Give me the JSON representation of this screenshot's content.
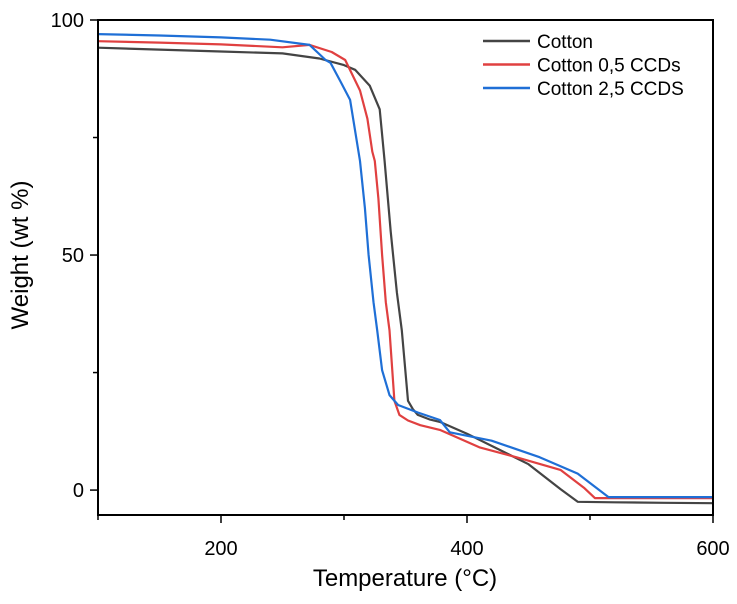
{
  "chart_data": {
    "type": "line",
    "title": "",
    "xlabel": "Temperature (°C)",
    "ylabel": "Weight (wt %)",
    "xlim": [
      100,
      600
    ],
    "ylim": [
      -5.3,
      100
    ],
    "xticks": [
      200,
      400,
      600
    ],
    "xtick_labels": [
      "200",
      "400",
      "600"
    ],
    "x_minor_ticks": [
      100,
      300,
      500
    ],
    "yticks": [
      0,
      50,
      100
    ],
    "ytick_labels": [
      "0",
      "50",
      "100"
    ],
    "y_minor_ticks": [
      25,
      75
    ],
    "grid": false,
    "legend_position": "top-right",
    "series": [
      {
        "name": "Cotton",
        "color": "#444444",
        "x": [
          100,
          150,
          200,
          250,
          280,
          300,
          309,
          321,
          329,
          333,
          338,
          343,
          347,
          352,
          356,
          360,
          370,
          378,
          400,
          427,
          450,
          476,
          490,
          520,
          560,
          600
        ],
        "y": [
          94.1,
          93.7,
          93.3,
          92.9,
          91.8,
          90.4,
          89.4,
          86.0,
          81.0,
          70.0,
          55.0,
          42.0,
          34.0,
          19.0,
          17.2,
          16.0,
          15.0,
          14.5,
          12.0,
          8.5,
          5.5,
          0.2,
          -2.5,
          -2.6,
          -2.7,
          -2.8
        ]
      },
      {
        "name": "Cotton 0,5 CCDs",
        "color": "#e04040",
        "x": [
          100,
          150,
          200,
          250,
          272,
          290,
          301,
          313,
          319,
          323,
          325,
          328,
          331,
          334,
          337,
          341,
          345,
          352,
          362,
          378,
          410,
          440,
          476,
          495,
          504,
          540,
          600
        ],
        "y": [
          95.5,
          95.2,
          94.8,
          94.2,
          94.7,
          93.2,
          91.5,
          85.0,
          79.0,
          72.0,
          70.0,
          62.0,
          50.0,
          40.0,
          34.0,
          19.0,
          16.0,
          14.8,
          13.8,
          12.8,
          9.1,
          7.0,
          4.3,
          0.5,
          -1.7,
          -1.7,
          -1.7
        ]
      },
      {
        "name": "Cotton 2,5 CCDS",
        "color": "#1f6fd6",
        "x": [
          100,
          150,
          200,
          240,
          272,
          285,
          289,
          297,
          305,
          313,
          317,
          320,
          324,
          327,
          331,
          337,
          344,
          360,
          378,
          386,
          420,
          459,
          490,
          515,
          560,
          600
        ],
        "y": [
          97.0,
          96.7,
          96.3,
          95.8,
          94.7,
          91.5,
          90.9,
          87.0,
          83.0,
          70.0,
          60.0,
          50.0,
          40.0,
          34.0,
          25.5,
          20.2,
          18.1,
          16.5,
          14.9,
          12.3,
          10.5,
          7.0,
          3.5,
          -1.5,
          -1.5,
          -1.5
        ]
      }
    ]
  }
}
